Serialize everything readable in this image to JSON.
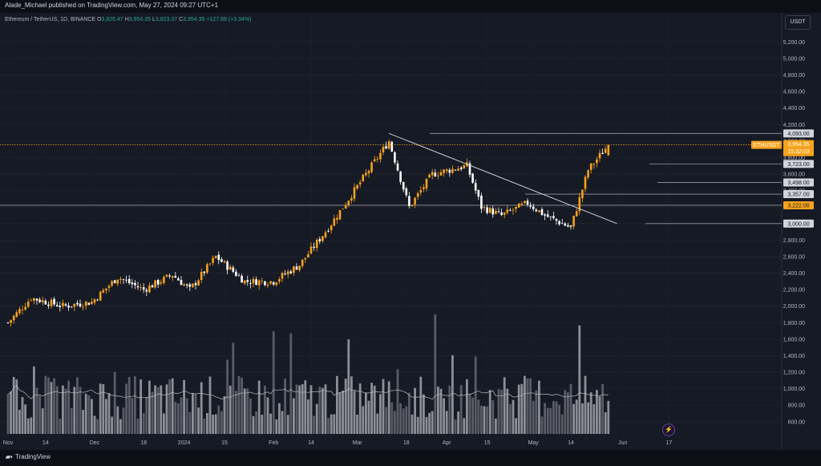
{
  "header": {
    "publisher": "Alade_Michael published on TradingView.com, May 27, 2024 09:27 UTC+1"
  },
  "legend": {
    "symbol": "Ethereum / TetherUS, 1D, BINANCE",
    "o_label": "O",
    "o": "3,826.47",
    "h_label": "H",
    "h": "3,954.35",
    "l_label": "L",
    "l": "3,823.37",
    "c_label": "C",
    "c": "3,954.35",
    "change": "+127.88 (+3.34%)"
  },
  "currency": "USDT",
  "footer": {
    "logo": "TradingView"
  },
  "colors": {
    "background": "#161a25",
    "up": "#f7a21b",
    "down": "#ffffff",
    "line": "#9598a1",
    "volume_up": "#8d8f96",
    "volume_down": "#595c66",
    "price_line": "#f7a21b"
  },
  "chart_data": {
    "type": "candlestick",
    "symbol": "ETHUSDT",
    "timeframe": "1D",
    "y_ticks": [
      "600.00",
      "800.00",
      "1,000.00",
      "1,200.00",
      "1,400.00",
      "1,600.00",
      "1,800.00",
      "2,000.00",
      "2,200.00",
      "2,400.00",
      "2,600.00",
      "2,800.00",
      "3,000.00",
      "3,200.00",
      "3,400.00",
      "3,600.00",
      "3,800.00",
      "4,000.00",
      "4,200.00",
      "4,400.00",
      "4,600.00",
      "4,800.00",
      "5,000.00",
      "5,200.00"
    ],
    "x_ticks": [
      "Nov",
      "14",
      "Dec",
      "18",
      "2024",
      "15",
      "Feb",
      "14",
      "Mar",
      "18",
      "Apr",
      "15",
      "May",
      "14",
      "Jun",
      "17"
    ],
    "y_range": [
      520,
      5340
    ],
    "last_price": {
      "label": "ETHUSDT",
      "value": "3,954.35",
      "countdown": "15:32:03"
    },
    "horizontal_levels": [
      {
        "value": 4093,
        "label": "4,093.00"
      },
      {
        "value": 3723,
        "label": "3,723.00"
      },
      {
        "value": 3498,
        "label": "3,498.00"
      },
      {
        "value": 3357,
        "label": "3,357.00"
      },
      {
        "value": 3222,
        "label": "3,222.00"
      },
      {
        "value": 3000,
        "label": "3,000.00"
      }
    ],
    "trendline": {
      "from": {
        "date": "Mar 12, 2024",
        "price": 4093
      },
      "to": {
        "date": "May 30, 2024",
        "price": 3000
      }
    },
    "series": [
      {
        "name": "price",
        "anchors": [
          {
            "date": "Nov 1, 2023",
            "price": 1800
          },
          {
            "date": "Nov 9, 2023",
            "price": 2100
          },
          {
            "date": "Nov 20, 2023",
            "price": 2000
          },
          {
            "date": "Nov 30, 2023",
            "price": 2050
          },
          {
            "date": "Dec 9, 2023",
            "price": 2350
          },
          {
            "date": "Dec 18, 2023",
            "price": 2200
          },
          {
            "date": "Dec 28, 2023",
            "price": 2380
          },
          {
            "date": "Jan 3, 2024",
            "price": 2200
          },
          {
            "date": "Jan 12, 2024",
            "price": 2600
          },
          {
            "date": "Jan 22, 2024",
            "price": 2300
          },
          {
            "date": "Feb 1, 2024",
            "price": 2300
          },
          {
            "date": "Feb 10, 2024",
            "price": 2500
          },
          {
            "date": "Feb 20, 2024",
            "price": 2950
          },
          {
            "date": "Mar 1, 2024",
            "price": 3450
          },
          {
            "date": "Mar 12, 2024",
            "price": 4000
          },
          {
            "date": "Mar 19, 2024",
            "price": 3200
          },
          {
            "date": "Mar 27, 2024",
            "price": 3600
          },
          {
            "date": "Apr 8, 2024",
            "price": 3700
          },
          {
            "date": "Apr 13, 2024",
            "price": 3200
          },
          {
            "date": "Apr 20, 2024",
            "price": 3100
          },
          {
            "date": "Apr 29, 2024",
            "price": 3250
          },
          {
            "date": "May 5, 2024",
            "price": 3100
          },
          {
            "date": "May 14, 2024",
            "price": 2950
          },
          {
            "date": "May 20, 2024",
            "price": 3650
          },
          {
            "date": "May 27, 2024",
            "price": 3954
          }
        ]
      }
    ]
  }
}
